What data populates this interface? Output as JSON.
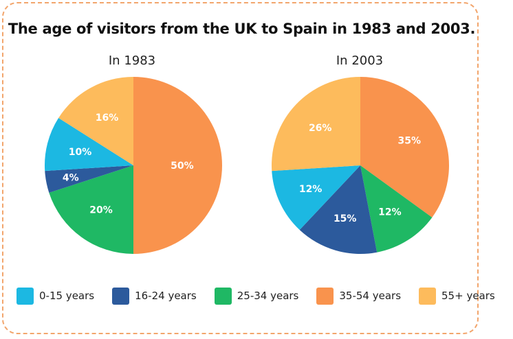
{
  "chart_data": {
    "type": "pie",
    "title": "The age of visitors from the UK to Spain in 1983 and 2003.",
    "categories": [
      "0-15 years",
      "16-24 years",
      "25-34 years",
      "35-54 years",
      "55+ years"
    ],
    "colors": [
      "#1cb8e2",
      "#2c5a9c",
      "#1fb864",
      "#f9934d",
      "#fdbb5c"
    ],
    "charts": [
      {
        "name": "In 1983",
        "values": [
          10,
          4,
          20,
          50,
          16
        ]
      },
      {
        "name": "In 2003",
        "values": [
          12,
          15,
          12,
          35,
          26
        ]
      }
    ],
    "value_suffix": "%",
    "legend_position": "bottom"
  }
}
